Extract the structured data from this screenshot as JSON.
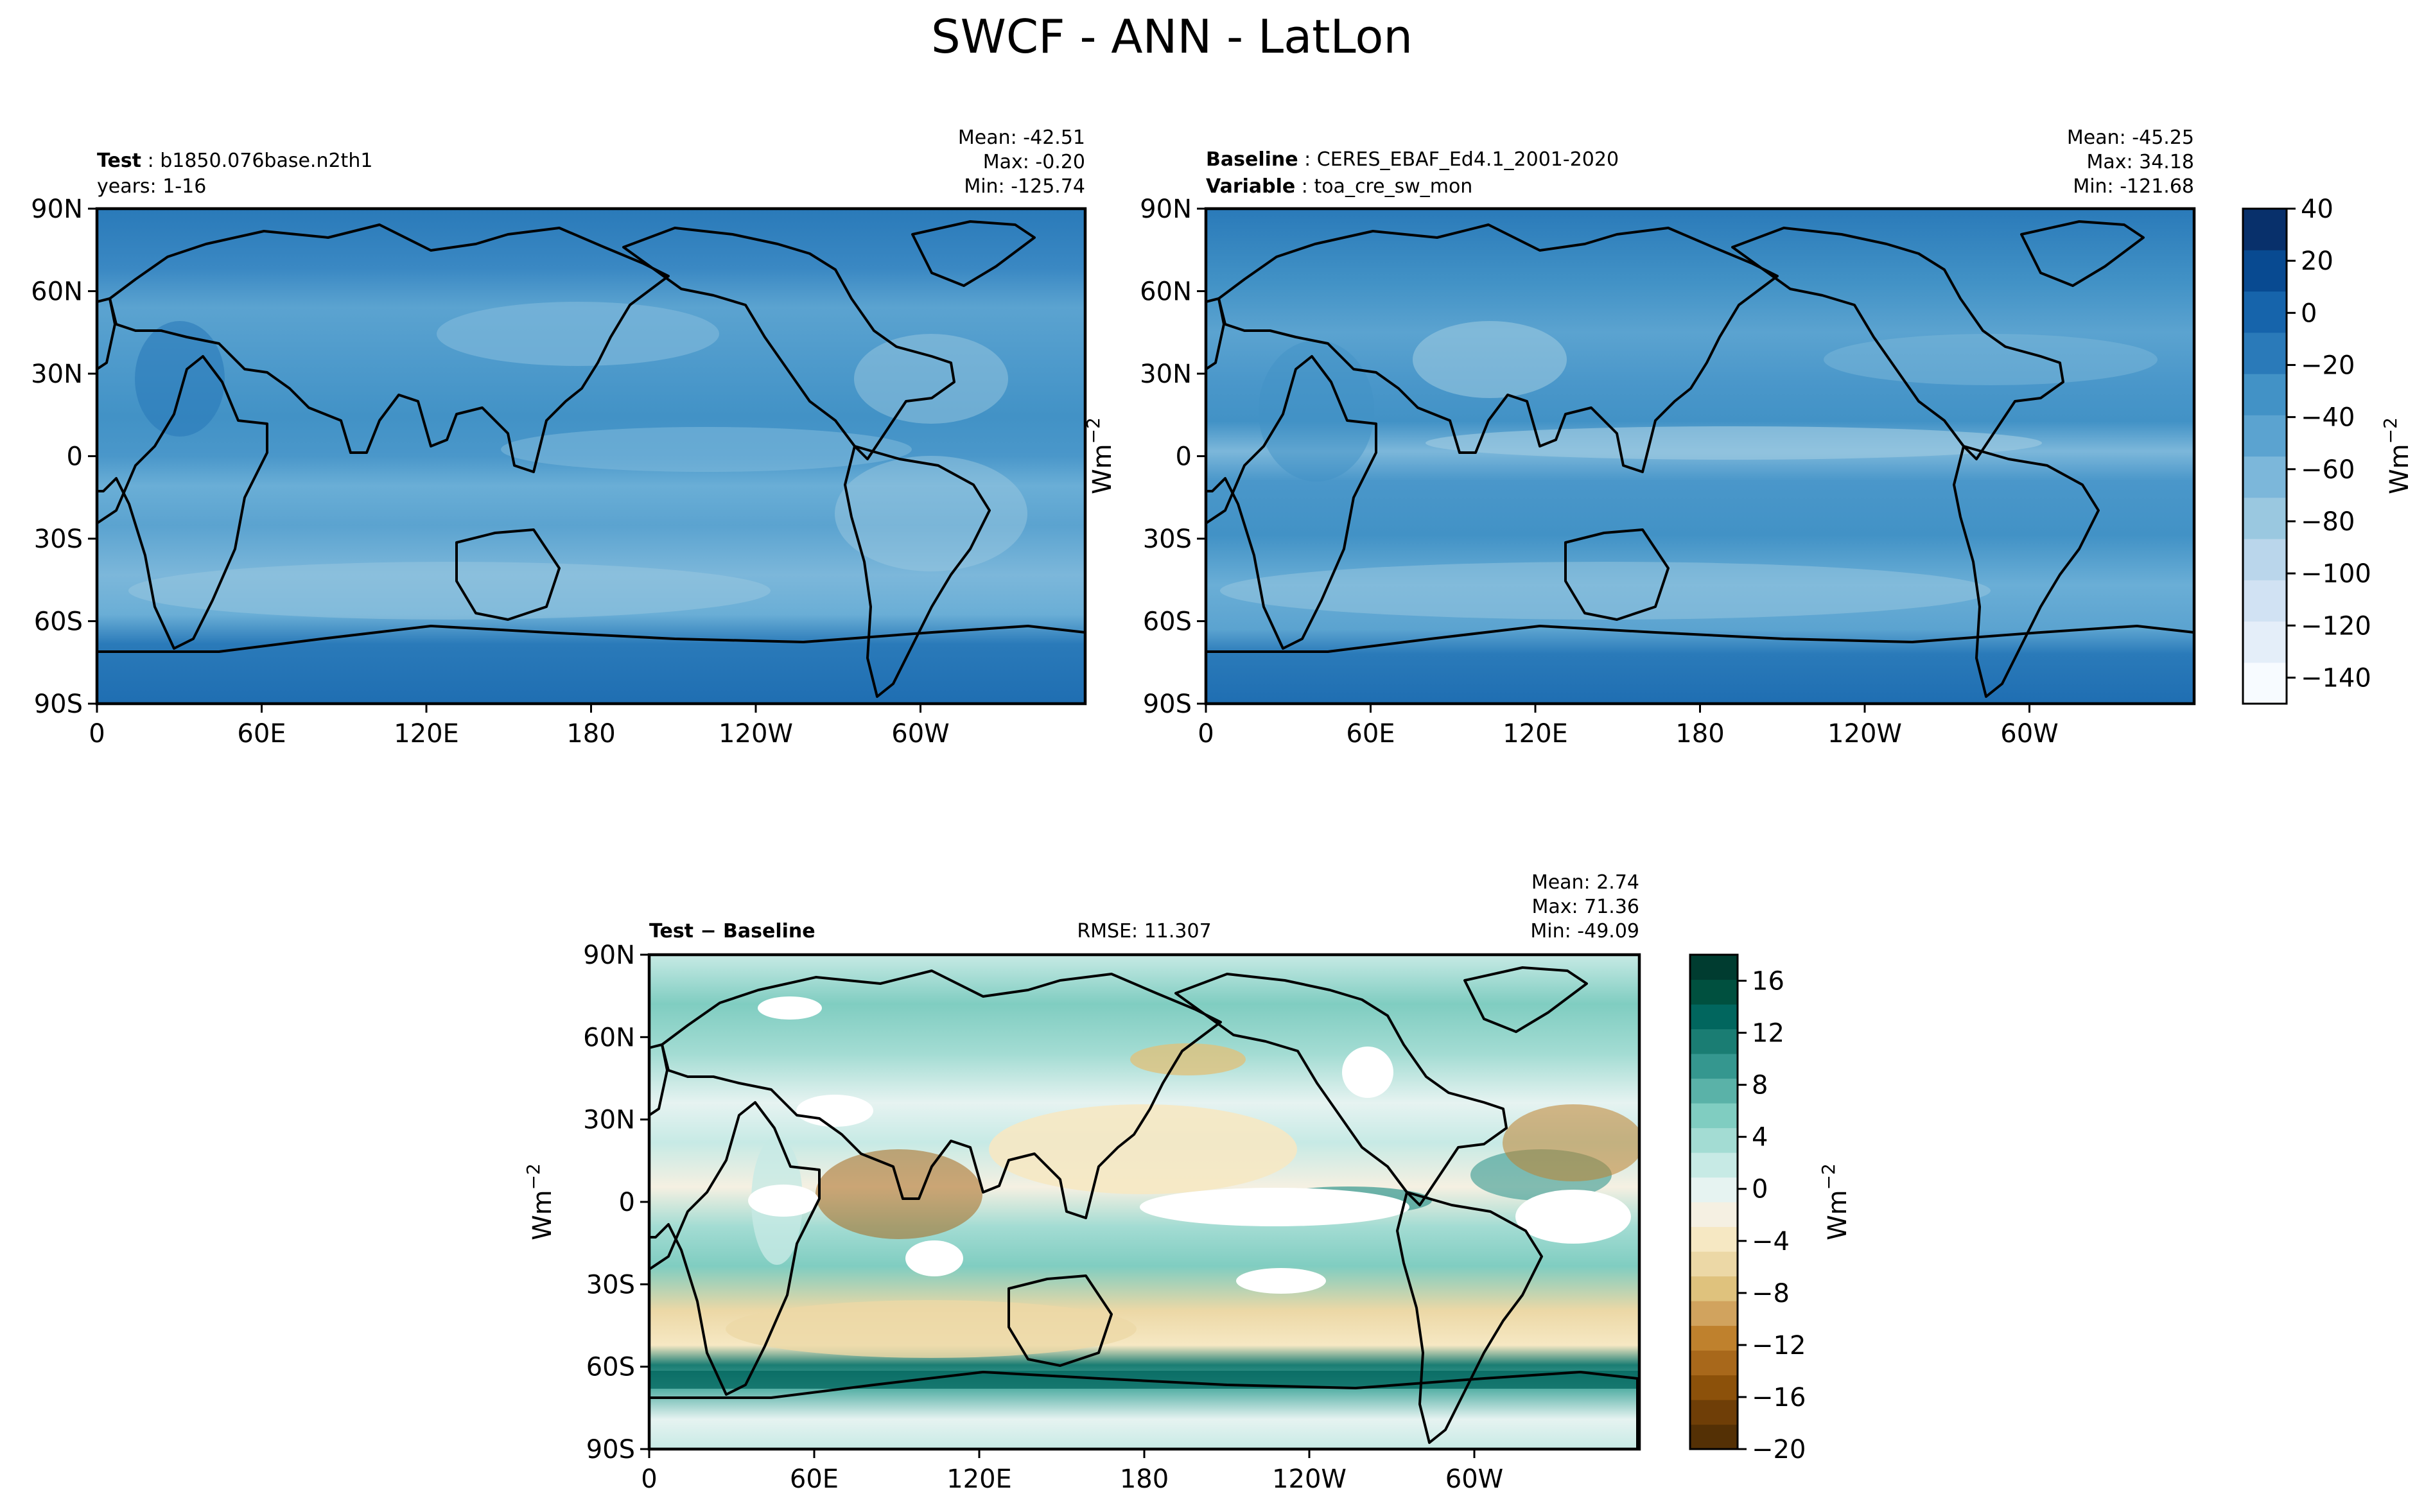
{
  "figure_title": "SWCF - ANN - LatLon",
  "colors": {
    "blues": [
      "#f7fbff",
      "#e4eef9",
      "#d1e2f3",
      "#bad6eb",
      "#9ac8e0",
      "#7cb7da",
      "#5ba3d0",
      "#4292c6",
      "#2a7ab9",
      "#1664ab",
      "#084a91",
      "#08306b"
    ],
    "diff": [
      "#543005",
      "#6f3e07",
      "#8c510a",
      "#a8681b",
      "#bf812d",
      "#d1a35e",
      "#dfc27d",
      "#ecd8a6",
      "#f6e8c3",
      "#f5f0e2",
      "#e6f3f1",
      "#c7eae5",
      "#a3dcd3",
      "#80cdc1",
      "#5ab2a8",
      "#35978f",
      "#1a7d73",
      "#01665e",
      "#00503f",
      "#003c30"
    ]
  },
  "chart_data": [
    {
      "type": "heatmap",
      "panel": "test",
      "header_left": [
        {
          "bold": "Test",
          "text": "b1850.076base.n2th1"
        },
        {
          "bold": "",
          "text": "years: 1-16"
        }
      ],
      "stats": [
        "Mean: -42.51",
        "Max: -0.20",
        "Min: -125.74"
      ],
      "x_ticks": [
        "0",
        "60E",
        "120E",
        "180",
        "120W",
        "60W"
      ],
      "y_ticks": [
        "90N",
        "60N",
        "30N",
        "0",
        "30S",
        "60S",
        "90S"
      ],
      "xlim": [
        0,
        360
      ],
      "ylim": [
        -90,
        90
      ],
      "colormap": "blues"
    },
    {
      "type": "heatmap",
      "panel": "baseline",
      "header_left": [
        {
          "bold": "Baseline",
          "text": "CERES_EBAF_Ed4.1_2001-2020"
        },
        {
          "bold": "Variable",
          "text": "toa_cre_sw_mon"
        }
      ],
      "stats": [
        "Mean: -45.25",
        "Max: 34.18",
        "Min: -121.68"
      ],
      "x_ticks": [
        "0",
        "60E",
        "120E",
        "180",
        "120W",
        "60W"
      ],
      "y_ticks": [
        "90N",
        "60N",
        "30N",
        "0",
        "30S",
        "60S",
        "90S"
      ],
      "ylabel": "Wm",
      "ylabel_sup": "−2",
      "xlim": [
        0,
        360
      ],
      "ylim": [
        -90,
        90
      ],
      "colormap": "blues",
      "colorbar": {
        "ticks": [
          "40",
          "20",
          "0",
          "−20",
          "−40",
          "−60",
          "−80",
          "−100",
          "−120",
          "−140"
        ],
        "tick_values": [
          40,
          20,
          0,
          -20,
          -40,
          -60,
          -80,
          -100,
          -120,
          -140
        ],
        "range": [
          -150,
          40
        ],
        "label": "Wm",
        "label_sup": "−2"
      }
    },
    {
      "type": "heatmap",
      "panel": "difference",
      "header_left": [
        {
          "bold": "Test − Baseline",
          "text": ""
        }
      ],
      "header_center": "RMSE: 11.307",
      "stats": [
        "Mean:  2.74",
        "Max: 71.36",
        "Min: -49.09"
      ],
      "x_ticks": [
        "0",
        "60E",
        "120E",
        "180",
        "120W",
        "60W"
      ],
      "y_ticks": [
        "90N",
        "60N",
        "30N",
        "0",
        "30S",
        "60S",
        "90S"
      ],
      "ylabel": "Wm",
      "ylabel_sup": "−2",
      "xlim": [
        0,
        360
      ],
      "ylim": [
        -90,
        90
      ],
      "colormap": "diff",
      "colorbar": {
        "ticks": [
          "16",
          "12",
          "8",
          "4",
          "0",
          "−4",
          "−8",
          "−12",
          "−16",
          "−20"
        ],
        "tick_values": [
          16,
          12,
          8,
          4,
          0,
          -4,
          -8,
          -12,
          -16,
          -20
        ],
        "range": [
          -20,
          18
        ],
        "label": "Wm",
        "label_sup": "−2"
      }
    }
  ]
}
